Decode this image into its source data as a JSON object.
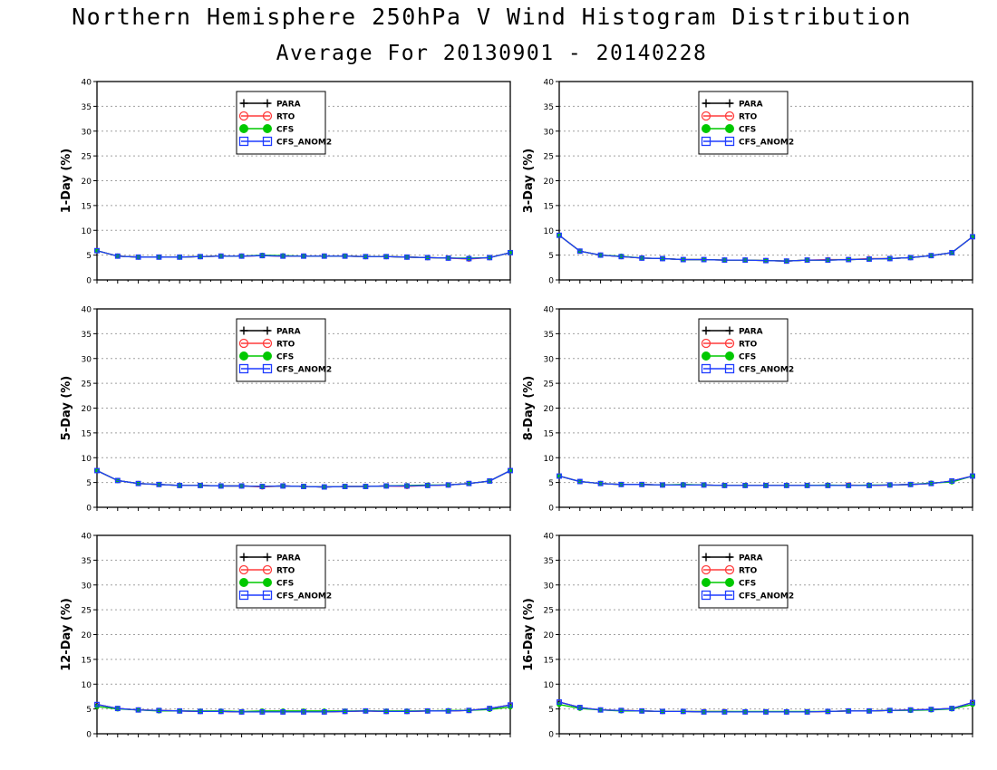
{
  "header": {
    "title": "Northern Hemisphere 250hPa V Wind Histogram Distribution",
    "subtitle": "Average For 20130901 - 20140228"
  },
  "legend_entries": [
    "PARA",
    "RTO",
    "CFS",
    "CFS_ANOM2"
  ],
  "series_styles": [
    {
      "name": "PARA",
      "color": "#000000",
      "marker": "plus"
    },
    {
      "name": "RTO",
      "color": "#ff3c3c",
      "marker": "open-circle"
    },
    {
      "name": "CFS",
      "color": "#00c800",
      "marker": "filled-circle"
    },
    {
      "name": "CFS_ANOM2",
      "color": "#1e3cff",
      "marker": "open-square"
    }
  ],
  "chart_data": [
    {
      "type": "line",
      "ylabel": "1-Day (%)",
      "ylim": [
        0,
        40
      ],
      "yticks": [
        "0",
        "5",
        "10",
        "15",
        "20",
        "25",
        "30",
        "35",
        "40"
      ],
      "grid": true,
      "legend": "top-center",
      "x": [
        1,
        2,
        3,
        4,
        5,
        6,
        7,
        8,
        9,
        10,
        11,
        12,
        13,
        14,
        15,
        16,
        17,
        18,
        19,
        20,
        21
      ],
      "series": [
        {
          "name": "PARA",
          "values": [
            5.9,
            4.8,
            4.6,
            4.6,
            4.6,
            4.7,
            4.8,
            4.8,
            4.9,
            4.8,
            4.8,
            4.8,
            4.8,
            4.7,
            4.7,
            4.6,
            4.5,
            4.4,
            4.3,
            4.5,
            5.5
          ]
        },
        {
          "name": "RTO",
          "values": [
            5.9,
            4.8,
            4.6,
            4.6,
            4.6,
            4.7,
            4.8,
            4.8,
            4.9,
            4.8,
            4.8,
            4.8,
            4.8,
            4.7,
            4.7,
            4.6,
            4.5,
            4.4,
            4.2,
            4.5,
            5.5
          ]
        },
        {
          "name": "CFS",
          "values": [
            5.9,
            4.8,
            4.6,
            4.6,
            4.6,
            4.7,
            4.8,
            4.8,
            5.0,
            4.9,
            4.8,
            4.8,
            4.8,
            4.7,
            4.7,
            4.6,
            4.5,
            4.4,
            4.4,
            4.5,
            5.5
          ]
        },
        {
          "name": "CFS_ANOM2",
          "values": [
            5.9,
            4.8,
            4.6,
            4.6,
            4.6,
            4.7,
            4.8,
            4.8,
            4.9,
            4.8,
            4.8,
            4.8,
            4.8,
            4.7,
            4.7,
            4.6,
            4.5,
            4.4,
            4.3,
            4.5,
            5.5
          ]
        }
      ]
    },
    {
      "type": "line",
      "ylabel": "3-Day (%)",
      "ylim": [
        0,
        40
      ],
      "yticks": [
        "0",
        "5",
        "10",
        "15",
        "20",
        "25",
        "30",
        "35",
        "40"
      ],
      "grid": true,
      "legend": "top-center",
      "x": [
        1,
        2,
        3,
        4,
        5,
        6,
        7,
        8,
        9,
        10,
        11,
        12,
        13,
        14,
        15,
        16,
        17,
        18,
        19,
        20,
        21
      ],
      "series": [
        {
          "name": "PARA",
          "values": [
            9.0,
            5.8,
            5.0,
            4.7,
            4.4,
            4.3,
            4.1,
            4.1,
            4.0,
            4.0,
            3.9,
            3.8,
            4.0,
            4.0,
            4.1,
            4.2,
            4.3,
            4.5,
            4.9,
            5.5,
            8.7
          ]
        },
        {
          "name": "RTO",
          "values": [
            9.0,
            5.8,
            5.0,
            4.7,
            4.4,
            4.3,
            4.1,
            4.1,
            4.0,
            4.0,
            3.9,
            3.8,
            4.0,
            4.1,
            4.1,
            4.3,
            4.3,
            4.5,
            4.9,
            5.5,
            8.7
          ]
        },
        {
          "name": "CFS",
          "values": [
            9.0,
            5.8,
            5.0,
            4.8,
            4.4,
            4.3,
            4.1,
            4.1,
            4.0,
            4.0,
            3.9,
            3.8,
            4.0,
            4.0,
            4.1,
            4.2,
            4.3,
            4.5,
            4.9,
            5.5,
            8.7
          ]
        },
        {
          "name": "CFS_ANOM2",
          "values": [
            9.0,
            5.8,
            5.0,
            4.7,
            4.4,
            4.3,
            4.1,
            4.1,
            4.0,
            4.0,
            3.9,
            3.8,
            4.0,
            4.0,
            4.1,
            4.2,
            4.3,
            4.5,
            4.9,
            5.5,
            8.7
          ]
        }
      ]
    },
    {
      "type": "line",
      "ylabel": "5-Day (%)",
      "ylim": [
        0,
        40
      ],
      "yticks": [
        "0",
        "5",
        "10",
        "15",
        "20",
        "25",
        "30",
        "35",
        "40"
      ],
      "grid": true,
      "legend": "top-center",
      "x": [
        1,
        2,
        3,
        4,
        5,
        6,
        7,
        8,
        9,
        10,
        11,
        12,
        13,
        14,
        15,
        16,
        17,
        18,
        19,
        20,
        21
      ],
      "series": [
        {
          "name": "PARA",
          "values": [
            7.4,
            5.4,
            4.8,
            4.6,
            4.4,
            4.4,
            4.3,
            4.3,
            4.2,
            4.3,
            4.2,
            4.1,
            4.2,
            4.2,
            4.3,
            4.3,
            4.4,
            4.5,
            4.8,
            5.3,
            7.4
          ]
        },
        {
          "name": "RTO",
          "values": [
            7.4,
            5.4,
            4.8,
            4.6,
            4.4,
            4.4,
            4.3,
            4.3,
            4.1,
            4.3,
            4.2,
            4.1,
            4.2,
            4.2,
            4.3,
            4.2,
            4.4,
            4.5,
            4.8,
            5.3,
            7.4
          ]
        },
        {
          "name": "CFS",
          "values": [
            7.4,
            5.4,
            4.8,
            4.6,
            4.4,
            4.4,
            4.3,
            4.3,
            4.2,
            4.3,
            4.2,
            4.1,
            4.2,
            4.2,
            4.3,
            4.4,
            4.5,
            4.5,
            4.8,
            5.3,
            7.4
          ]
        },
        {
          "name": "CFS_ANOM2",
          "values": [
            7.4,
            5.4,
            4.8,
            4.6,
            4.4,
            4.4,
            4.3,
            4.3,
            4.2,
            4.3,
            4.2,
            4.1,
            4.2,
            4.2,
            4.3,
            4.3,
            4.4,
            4.5,
            4.8,
            5.3,
            7.4
          ]
        }
      ]
    },
    {
      "type": "line",
      "ylabel": "8-Day (%)",
      "ylim": [
        0,
        40
      ],
      "yticks": [
        "0",
        "5",
        "10",
        "15",
        "20",
        "25",
        "30",
        "35",
        "40"
      ],
      "grid": true,
      "legend": "top-center",
      "x": [
        1,
        2,
        3,
        4,
        5,
        6,
        7,
        8,
        9,
        10,
        11,
        12,
        13,
        14,
        15,
        16,
        17,
        18,
        19,
        20,
        21
      ],
      "series": [
        {
          "name": "PARA",
          "values": [
            6.3,
            5.2,
            4.8,
            4.6,
            4.6,
            4.5,
            4.5,
            4.5,
            4.4,
            4.4,
            4.4,
            4.4,
            4.4,
            4.4,
            4.4,
            4.4,
            4.5,
            4.6,
            4.8,
            5.3,
            6.3
          ]
        },
        {
          "name": "RTO",
          "values": [
            6.3,
            5.2,
            4.8,
            4.6,
            4.6,
            4.5,
            4.5,
            4.5,
            4.4,
            4.4,
            4.4,
            4.4,
            4.4,
            4.4,
            4.5,
            4.4,
            4.5,
            4.6,
            4.8,
            5.3,
            6.3
          ]
        },
        {
          "name": "CFS",
          "values": [
            6.3,
            5.2,
            4.8,
            4.6,
            4.6,
            4.5,
            4.6,
            4.5,
            4.4,
            4.4,
            4.4,
            4.4,
            4.4,
            4.5,
            4.4,
            4.5,
            4.5,
            4.6,
            4.9,
            5.1,
            6.3
          ]
        },
        {
          "name": "CFS_ANOM2",
          "values": [
            6.3,
            5.2,
            4.8,
            4.6,
            4.6,
            4.5,
            4.5,
            4.5,
            4.4,
            4.4,
            4.4,
            4.4,
            4.4,
            4.4,
            4.4,
            4.4,
            4.5,
            4.6,
            4.8,
            5.3,
            6.3
          ]
        }
      ]
    },
    {
      "type": "line",
      "ylabel": "12-Day (%)",
      "ylim": [
        0,
        40
      ],
      "yticks": [
        "0",
        "5",
        "10",
        "15",
        "20",
        "25",
        "30",
        "35",
        "40"
      ],
      "grid": true,
      "legend": "top-center",
      "x": [
        1,
        2,
        3,
        4,
        5,
        6,
        7,
        8,
        9,
        10,
        11,
        12,
        13,
        14,
        15,
        16,
        17,
        18,
        19,
        20,
        21
      ],
      "series": [
        {
          "name": "PARA",
          "values": [
            5.9,
            5.1,
            4.8,
            4.7,
            4.6,
            4.5,
            4.5,
            4.4,
            4.4,
            4.4,
            4.4,
            4.4,
            4.5,
            4.6,
            4.5,
            4.5,
            4.6,
            4.6,
            4.7,
            5.1,
            5.8
          ]
        },
        {
          "name": "RTO",
          "values": [
            5.9,
            5.1,
            4.8,
            4.7,
            4.6,
            4.5,
            4.5,
            4.4,
            4.4,
            4.4,
            4.4,
            4.4,
            4.5,
            4.6,
            4.5,
            4.5,
            4.6,
            4.6,
            4.7,
            5.1,
            5.8
          ]
        },
        {
          "name": "CFS",
          "values": [
            5.5,
            5.0,
            4.8,
            4.6,
            4.6,
            4.6,
            4.6,
            4.5,
            4.6,
            4.6,
            4.6,
            4.6,
            4.6,
            4.6,
            4.6,
            4.6,
            4.6,
            4.7,
            4.7,
            4.9,
            5.4
          ]
        },
        {
          "name": "CFS_ANOM2",
          "values": [
            5.9,
            5.1,
            4.8,
            4.7,
            4.6,
            4.5,
            4.5,
            4.4,
            4.4,
            4.4,
            4.4,
            4.4,
            4.5,
            4.6,
            4.5,
            4.5,
            4.6,
            4.6,
            4.7,
            5.1,
            5.8
          ]
        }
      ]
    },
    {
      "type": "line",
      "ylabel": "16-Day (%)",
      "ylim": [
        0,
        40
      ],
      "yticks": [
        "0",
        "5",
        "10",
        "15",
        "20",
        "25",
        "30",
        "35",
        "40"
      ],
      "grid": true,
      "legend": "top-center",
      "x": [
        1,
        2,
        3,
        4,
        5,
        6,
        7,
        8,
        9,
        10,
        11,
        12,
        13,
        14,
        15,
        16,
        17,
        18,
        19,
        20,
        21
      ],
      "series": [
        {
          "name": "PARA",
          "values": [
            6.4,
            5.3,
            4.8,
            4.7,
            4.6,
            4.5,
            4.5,
            4.4,
            4.4,
            4.4,
            4.4,
            4.4,
            4.4,
            4.5,
            4.6,
            4.6,
            4.7,
            4.8,
            4.9,
            5.1,
            6.3
          ]
        },
        {
          "name": "RTO",
          "values": [
            6.4,
            5.3,
            4.8,
            4.7,
            4.6,
            4.5,
            4.5,
            4.5,
            4.5,
            4.4,
            4.4,
            4.4,
            4.4,
            4.5,
            4.6,
            4.6,
            4.7,
            4.8,
            4.9,
            5.1,
            6.3
          ]
        },
        {
          "name": "CFS",
          "values": [
            5.9,
            5.1,
            4.8,
            4.6,
            4.6,
            4.5,
            4.5,
            4.5,
            4.5,
            4.5,
            4.5,
            4.5,
            4.5,
            4.5,
            4.6,
            4.6,
            4.7,
            4.7,
            4.8,
            5.0,
            5.9
          ]
        },
        {
          "name": "CFS_ANOM2",
          "values": [
            6.4,
            5.3,
            4.8,
            4.7,
            4.6,
            4.5,
            4.5,
            4.4,
            4.4,
            4.4,
            4.4,
            4.4,
            4.4,
            4.5,
            4.6,
            4.6,
            4.7,
            4.8,
            4.9,
            5.1,
            6.3
          ]
        }
      ]
    }
  ]
}
